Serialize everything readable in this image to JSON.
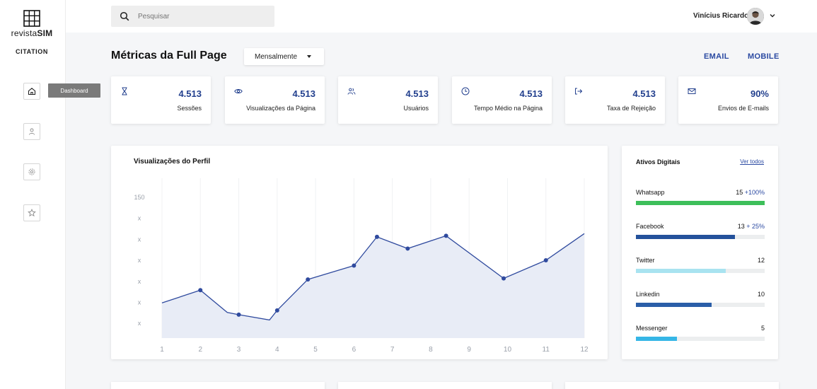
{
  "brand": {
    "logo_text_regular": "revista",
    "logo_text_bold": "SIM",
    "subtitle": "CITATION"
  },
  "sidebar": {
    "items": [
      {
        "id": "dashboard",
        "icon": "home-icon",
        "tooltip": "Dashboard"
      },
      {
        "id": "profile",
        "icon": "user-icon"
      },
      {
        "id": "settings",
        "icon": "gear-icon"
      },
      {
        "id": "favorites",
        "icon": "star-icon"
      }
    ]
  },
  "search": {
    "placeholder": "Pesquisar",
    "value": ""
  },
  "user": {
    "name": "Vinícius Ricardo"
  },
  "header": {
    "title": "Métricas da Full Page",
    "period": "Mensalmente",
    "links": [
      "EMAIL",
      "MOBILE"
    ]
  },
  "stats": [
    {
      "icon": "hourglass-icon",
      "value": "4.513",
      "label": "Sessões"
    },
    {
      "icon": "eye-icon",
      "value": "4.513",
      "label": "Visualizações da Página"
    },
    {
      "icon": "users-icon",
      "value": "4.513",
      "label": "Usuários"
    },
    {
      "icon": "clock-icon",
      "value": "4.513",
      "label": "Tempo Médio na Página"
    },
    {
      "icon": "exit-icon",
      "value": "4.513",
      "label": "Taxa de Rejeição"
    },
    {
      "icon": "mail-icon",
      "value": "90%",
      "label": "Envios de E-mails"
    }
  ],
  "chart_data": {
    "type": "area",
    "title": "Visualizações do Perfil",
    "x_ticks": [
      "1",
      "2",
      "3",
      "4",
      "5",
      "6",
      "7",
      "8",
      "9",
      "10",
      "11",
      "12"
    ],
    "y_ticks": [
      "150",
      "x",
      "x",
      "x",
      "x",
      "x",
      "x"
    ],
    "ylim": [
      0,
      150
    ],
    "points": [
      {
        "x": 1,
        "y": 33,
        "marker": false
      },
      {
        "x": 2,
        "y": 45,
        "marker": true
      },
      {
        "x": 2.7,
        "y": 24,
        "marker": false
      },
      {
        "x": 3,
        "y": 22,
        "marker": true
      },
      {
        "x": 3.8,
        "y": 17,
        "marker": false
      },
      {
        "x": 4,
        "y": 26,
        "marker": true
      },
      {
        "x": 4.8,
        "y": 55,
        "marker": true
      },
      {
        "x": 6,
        "y": 68,
        "marker": true
      },
      {
        "x": 6.6,
        "y": 95,
        "marker": true
      },
      {
        "x": 7.4,
        "y": 84,
        "marker": true
      },
      {
        "x": 8.4,
        "y": 96,
        "marker": true
      },
      {
        "x": 9.9,
        "y": 56,
        "marker": true
      },
      {
        "x": 11,
        "y": 73,
        "marker": true
      },
      {
        "x": 12,
        "y": 98,
        "marker": false
      }
    ],
    "line_color": "#2f4a9e",
    "fill_color": "#e8ecf6",
    "grid": true
  },
  "assets": {
    "title": "Ativos Digitais",
    "link": "Ver todos",
    "items": [
      {
        "name": "Whatsapp",
        "count": "15",
        "delta": "+100%",
        "progress": 1.0,
        "color": "#3dbf5a"
      },
      {
        "name": "Facebook",
        "count": "13",
        "delta": "+ 25%",
        "progress": 0.77,
        "color": "#24519b"
      },
      {
        "name": "Twitter",
        "count": "12",
        "delta": "",
        "progress": 0.7,
        "color": "#a9e3f0"
      },
      {
        "name": "Linkedin",
        "count": "10",
        "delta": "",
        "progress": 0.59,
        "color": "#2a5ea8"
      },
      {
        "name": "Messenger",
        "count": "5",
        "delta": "",
        "progress": 0.32,
        "color": "#36b6e6"
      }
    ]
  }
}
